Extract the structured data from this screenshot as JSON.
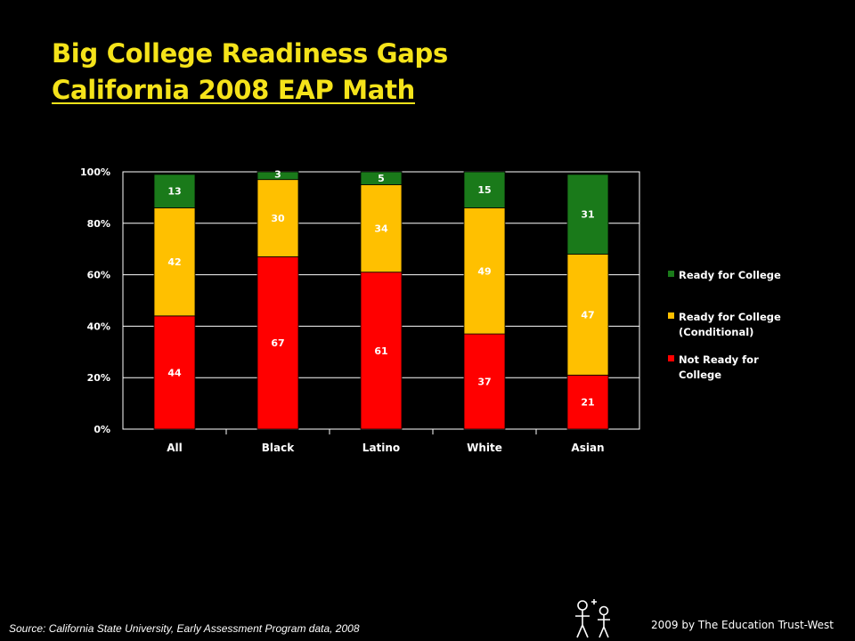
{
  "header": {
    "title_line1": "Big College Readiness Gaps",
    "title_line2": "California 2008 EAP Math"
  },
  "footer": {
    "source": "Source: California State University, Early Assessment Program data, 2008",
    "credit": "2009 by The Education Trust-West"
  },
  "colors": {
    "ready": "#1a7a1a",
    "conditional": "#ffc000",
    "not_ready": "#ff0000",
    "plot_border": "#ffffff",
    "grid": "#ffffff"
  },
  "chart_data": {
    "type": "bar",
    "stacked": true,
    "categories": [
      "All",
      "Black",
      "Latino",
      "White",
      "Asian"
    ],
    "series": [
      {
        "name": "Not Ready for College",
        "color": "#ff0000",
        "values": [
          44,
          67,
          61,
          37,
          21
        ]
      },
      {
        "name": "Ready for College (Conditional)",
        "color": "#ffc000",
        "values": [
          42,
          30,
          34,
          49,
          47
        ]
      },
      {
        "name": "Ready for College",
        "color": "#1a7a1a",
        "values": [
          13,
          3,
          5,
          15,
          31
        ]
      }
    ],
    "yticks": [
      "0%",
      "20%",
      "40%",
      "60%",
      "80%",
      "100%"
    ],
    "ylim": [
      0,
      100
    ],
    "grid": true,
    "legend_position": "right",
    "legend": [
      {
        "label_lines": [
          "Ready for College"
        ],
        "color": "#1a7a1a"
      },
      {
        "label_lines": [
          "Ready for College",
          "(Conditional)"
        ],
        "color": "#ffc000"
      },
      {
        "label_lines": [
          "Not Ready for",
          "College"
        ],
        "color": "#ff0000"
      }
    ]
  }
}
